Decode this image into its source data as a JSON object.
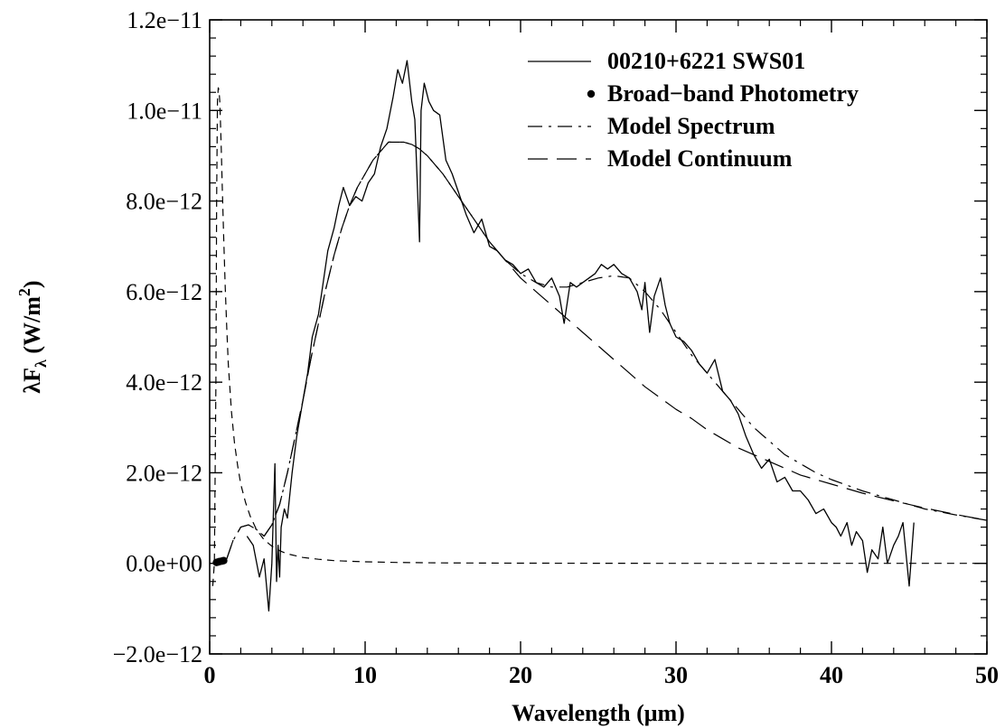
{
  "chart_data": {
    "type": "line",
    "title": "",
    "xlabel": "Wavelength (μm)",
    "ylabel": "λFλ (W/m²)",
    "ylabel_parts": {
      "lead": "λF",
      "sub": "λ",
      "mid": " (W/m",
      "sup": "2",
      "tail": ")"
    },
    "xlim": [
      0,
      50
    ],
    "ylim": [
      -2e-12,
      1.2e-11
    ],
    "x_ticks": [
      0,
      10,
      20,
      30,
      40,
      50
    ],
    "x_tick_labels": [
      "0",
      "10",
      "20",
      "30",
      "40",
      "50"
    ],
    "y_ticks": [
      -2e-12,
      0,
      2e-12,
      4e-12,
      6e-12,
      8e-12,
      1e-11,
      1.2e-11
    ],
    "y_tick_labels": [
      "−2.0e−12",
      "0.0e+00",
      "2.0e−12",
      "4.0e−12",
      "6.0e−12",
      "8.0e−12",
      "1.0e−11",
      "1.2e−11"
    ],
    "grid": false,
    "legend_position": "top-right",
    "series": [
      {
        "name": "00210+6221 SWS01",
        "style": "solid",
        "x": [
          2.4,
          2.8,
          3.2,
          3.5,
          3.8,
          4.0,
          4.2,
          4.3,
          4.4,
          4.5,
          4.6,
          4.8,
          5.0,
          5.3,
          5.6,
          6.0,
          6.3,
          6.6,
          7.0,
          7.3,
          7.6,
          8.0,
          8.3,
          8.6,
          9.0,
          9.4,
          9.8,
          10.2,
          10.6,
          11.0,
          11.4,
          11.8,
          12.1,
          12.4,
          12.7,
          13.0,
          13.2,
          13.5,
          13.6,
          13.8,
          14.1,
          14.4,
          14.8,
          15.2,
          15.6,
          16.0,
          16.5,
          17.0,
          17.5,
          18.0,
          18.5,
          19.0,
          19.5,
          20.0,
          20.5,
          21.0,
          21.5,
          22.0,
          22.5,
          22.8,
          23.2,
          23.6,
          24.0,
          24.4,
          24.8,
          25.2,
          25.6,
          26.0,
          26.5,
          27.0,
          27.5,
          27.8,
          28.0,
          28.3,
          28.6,
          29.0,
          29.3,
          29.6,
          30.0,
          30.5,
          31.0,
          31.5,
          32.0,
          32.5,
          33.0,
          33.5,
          34.0,
          34.5,
          35.0,
          35.5,
          36.0,
          36.5,
          37.0,
          37.5,
          38.0,
          38.5,
          39.0,
          39.5,
          40.0,
          40.3,
          40.6,
          41.0,
          41.3,
          41.6,
          42.0,
          42.3,
          42.6,
          43.0,
          43.3,
          43.6,
          44.0,
          44.3,
          44.6,
          45.0,
          45.3
        ],
        "y": [
          6e-13,
          4e-13,
          -3e-13,
          1e-13,
          -1.05e-12,
          0.0,
          2.2e-12,
          -4e-13,
          4e-13,
          -3e-13,
          8e-13,
          1.2e-12,
          1e-12,
          2e-12,
          2.8e-12,
          3.6e-12,
          4.2e-12,
          5e-12,
          5.5e-12,
          6.2e-12,
          6.9e-12,
          7.4e-12,
          7.9e-12,
          8.3e-12,
          7.9e-12,
          8.1e-12,
          8e-12,
          8.4e-12,
          8.6e-12,
          9.2e-12,
          9.6e-12,
          1.03e-11,
          1.09e-11,
          1.06e-11,
          1.11e-11,
          1.02e-11,
          9.8e-12,
          7.1e-12,
          1e-11,
          1.06e-11,
          1.02e-11,
          1e-11,
          9.9e-12,
          8.9e-12,
          8.6e-12,
          8.2e-12,
          7.7e-12,
          7.3e-12,
          7.6e-12,
          7e-12,
          6.9e-12,
          6.7e-12,
          6.6e-12,
          6.4e-12,
          6.5e-12,
          6.2e-12,
          6.1e-12,
          6.3e-12,
          5.9e-12,
          5.3e-12,
          6.2e-12,
          6.1e-12,
          6.2e-12,
          6.3e-12,
          6.4e-12,
          6.6e-12,
          6.5e-12,
          6.6e-12,
          6.4e-12,
          6.3e-12,
          6e-12,
          5.6e-12,
          6.2e-12,
          5.1e-12,
          5.9e-12,
          6.3e-12,
          5.7e-12,
          5.3e-12,
          5e-12,
          4.9e-12,
          4.7e-12,
          4.4e-12,
          4.2e-12,
          4.5e-12,
          3.8e-12,
          3.6e-12,
          3.3e-12,
          2.8e-12,
          2.4e-12,
          2.1e-12,
          2.3e-12,
          1.8e-12,
          1.9e-12,
          1.6e-12,
          1.6e-12,
          1.4e-12,
          1.1e-12,
          1.2e-12,
          9e-13,
          8e-13,
          6e-13,
          9e-13,
          4e-13,
          7e-13,
          5e-13,
          -2e-13,
          3e-13,
          1e-13,
          8e-13,
          0.0,
          4e-13,
          6e-13,
          9e-13,
          -5e-13,
          9e-13
        ]
      },
      {
        "name": "Broad−band Photometry",
        "style": "points",
        "x": [
          0.44,
          0.55,
          0.64,
          0.79,
          0.9
        ],
        "y": [
          2e-14,
          3e-14,
          4e-14,
          5e-14,
          6e-14
        ]
      },
      {
        "name": "Model Spectrum",
        "style": "dash-dot",
        "x": [
          1.1,
          1.5,
          2.0,
          2.5,
          3.0,
          3.5,
          4.0,
          4.5,
          5.0,
          5.5,
          6.0,
          6.5,
          7.0,
          7.5,
          8.0,
          8.5,
          9.0,
          9.5,
          10.0,
          10.5,
          11.0,
          11.5,
          12.0,
          12.5,
          13.0,
          13.5,
          14.0,
          15.0,
          16.0,
          17.0,
          18.0,
          19.0,
          20.0,
          21.0,
          22.0,
          23.0,
          24.0,
          25.0,
          26.0,
          27.0,
          28.0,
          29.0,
          30.0,
          31.0,
          32.0,
          33.0,
          34.0,
          35.0,
          36.0,
          37.0,
          38.0,
          39.0,
          40.0,
          42.0,
          44.0,
          46.0,
          48.0,
          50.0
        ],
        "y": [
          1e-13,
          5e-13,
          8e-13,
          8.5e-13,
          7.5e-13,
          6e-13,
          8.5e-13,
          1.3e-12,
          2e-12,
          2.8e-12,
          3.6e-12,
          4.5e-12,
          5.3e-12,
          6.1e-12,
          6.8e-12,
          7.4e-12,
          7.9e-12,
          8.3e-12,
          8.6e-12,
          8.9e-12,
          9.1e-12,
          9.3e-12,
          9.3e-12,
          9.3e-12,
          9.25e-12,
          9.15e-12,
          9e-12,
          8.6e-12,
          8.1e-12,
          7.6e-12,
          7.1e-12,
          6.7e-12,
          6.4e-12,
          6.2e-12,
          6.1e-12,
          6.1e-12,
          6.2e-12,
          6.3e-12,
          6.35e-12,
          6.3e-12,
          6e-12,
          5.6e-12,
          5.1e-12,
          4.6e-12,
          4.2e-12,
          3.8e-12,
          3.4e-12,
          3e-12,
          2.7e-12,
          2.4e-12,
          2.2e-12,
          2e-12,
          1.85e-12,
          1.6e-12,
          1.4e-12,
          1.2e-12,
          1.07e-12,
          9.5e-13
        ]
      },
      {
        "name": "Model Continuum",
        "style": "dashed",
        "x": [
          1.1,
          1.5,
          2.0,
          2.5,
          3.0,
          3.5,
          4.0,
          4.5,
          5.0,
          5.5,
          6.0,
          6.5,
          7.0,
          7.5,
          8.0,
          8.5,
          9.0,
          9.5,
          10.0,
          10.5,
          11.0,
          11.5,
          12.0,
          12.5,
          13.0,
          13.5,
          14.0,
          15.0,
          16.0,
          17.0,
          18.0,
          19.0,
          20.0,
          21.0,
          22.0,
          23.0,
          24.0,
          25.0,
          26.0,
          27.0,
          28.0,
          29.0,
          30.0,
          31.0,
          32.0,
          33.0,
          34.0,
          35.0,
          36.0,
          37.0,
          38.0,
          39.0,
          40.0,
          42.0,
          44.0,
          46.0,
          48.0,
          50.0
        ],
        "y": [
          1e-13,
          5e-13,
          8e-13,
          8.5e-13,
          7.5e-13,
          6e-13,
          8.5e-13,
          1.3e-12,
          2e-12,
          2.8e-12,
          3.6e-12,
          4.5e-12,
          5.3e-12,
          6.1e-12,
          6.8e-12,
          7.4e-12,
          7.9e-12,
          8.3e-12,
          8.6e-12,
          8.9e-12,
          9.1e-12,
          9.3e-12,
          9.3e-12,
          9.3e-12,
          9.25e-12,
          9.15e-12,
          9e-12,
          8.6e-12,
          8.1e-12,
          7.6e-12,
          7.1e-12,
          6.7e-12,
          6.3e-12,
          6e-12,
          5.7e-12,
          5.4e-12,
          5.1e-12,
          4.8e-12,
          4.5e-12,
          4.2e-12,
          3.9e-12,
          3.65e-12,
          3.4e-12,
          3.2e-12,
          2.95e-12,
          2.75e-12,
          2.55e-12,
          2.4e-12,
          2.25e-12,
          2.1e-12,
          1.95e-12,
          1.85e-12,
          1.75e-12,
          1.55e-12,
          1.38e-12,
          1.22e-12,
          1.08e-12,
          9.5e-13
        ]
      },
      {
        "name": "",
        "style": "short-dashed",
        "x": [
          0.2,
          0.3,
          0.4,
          0.45,
          0.5,
          0.55,
          0.6,
          0.65,
          0.7,
          0.75,
          0.8,
          0.9,
          1.0,
          1.1,
          1.2,
          1.4,
          1.6,
          1.8,
          2.0,
          2.3,
          2.6,
          3.0,
          3.5,
          4.0,
          4.5,
          5.0,
          6.0,
          7.0,
          8.0,
          10.0,
          12.0,
          15.0,
          20.0,
          30.0,
          40.0,
          50.0
        ],
        "y": [
          -5e-13,
          0.0,
          4e-12,
          8e-12,
          1.02e-11,
          1.05e-11,
          1.045e-11,
          1.02e-11,
          9.7e-12,
          9.1e-12,
          8.4e-12,
          7.2e-12,
          6.1e-12,
          5.2e-12,
          4.4e-12,
          3.35e-12,
          2.65e-12,
          2.15e-12,
          1.75e-12,
          1.35e-12,
          1.05e-12,
          7.5e-13,
          5.2e-13,
          3.8e-13,
          2.8e-13,
          2.1e-13,
          1.3e-13,
          9e-14,
          6e-14,
          3.5e-14,
          2e-14,
          1e-14,
          5e-15,
          0.0,
          0.0,
          0.0
        ]
      }
    ]
  }
}
